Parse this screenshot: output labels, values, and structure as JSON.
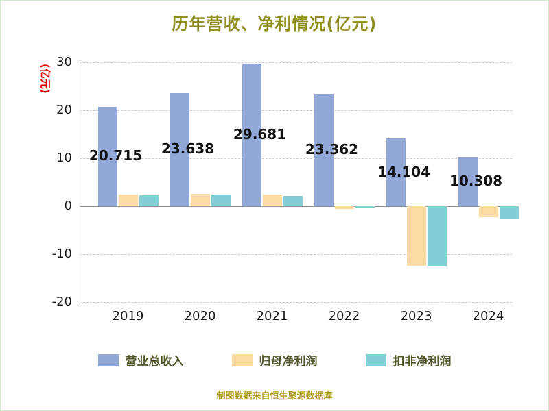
{
  "title": "历年营收、净利情况(亿元)",
  "footer": "制图数据来自恒生聚源数据库",
  "colors": {
    "title": "#8f8f1f",
    "footer": "#b09c1e",
    "ylabel": "#e60000",
    "tick_text": "#1a1a1a",
    "bar_label_text": "#111111",
    "legend_text": "#56562e",
    "gridline": "#cdcdcd",
    "zero_line": "#8f8f8f",
    "axis_line": "#3c3c3c",
    "frame_border": "#d6e8d2"
  },
  "chart_data": {
    "type": "bar",
    "title": "历年营收、净利情况(亿元)",
    "xlabel": "",
    "ylabel": "(亿元)",
    "categories": [
      "2019",
      "2020",
      "2021",
      "2022",
      "2023",
      "2024"
    ],
    "series": [
      {
        "id": "total-revenue",
        "name": "营业总收入",
        "color": "#91a8d9",
        "values": [
          20.715,
          23.638,
          29.681,
          23.362,
          14.104,
          10.308
        ]
      },
      {
        "id": "net-profit",
        "name": "归母净利润",
        "color": "#fbdda4",
        "values": [
          2.5,
          2.6,
          2.4,
          -0.5,
          -12.4,
          -2.3
        ]
      },
      {
        "id": "non-gaap-net-profit",
        "name": "扣非净利润",
        "color": "#83cfd5",
        "values": [
          2.3,
          2.4,
          2.2,
          -0.35,
          -12.6,
          -2.7
        ]
      }
    ],
    "bar_labels": [
      "20.715",
      "23.638",
      "29.681",
      "23.362",
      "14.104",
      "10.308"
    ],
    "ylim": [
      -20,
      30
    ],
    "yticks": [
      30,
      20,
      10,
      0,
      -10,
      -20
    ],
    "grid": "dashed-horizontal",
    "legend_position": "bottom"
  }
}
